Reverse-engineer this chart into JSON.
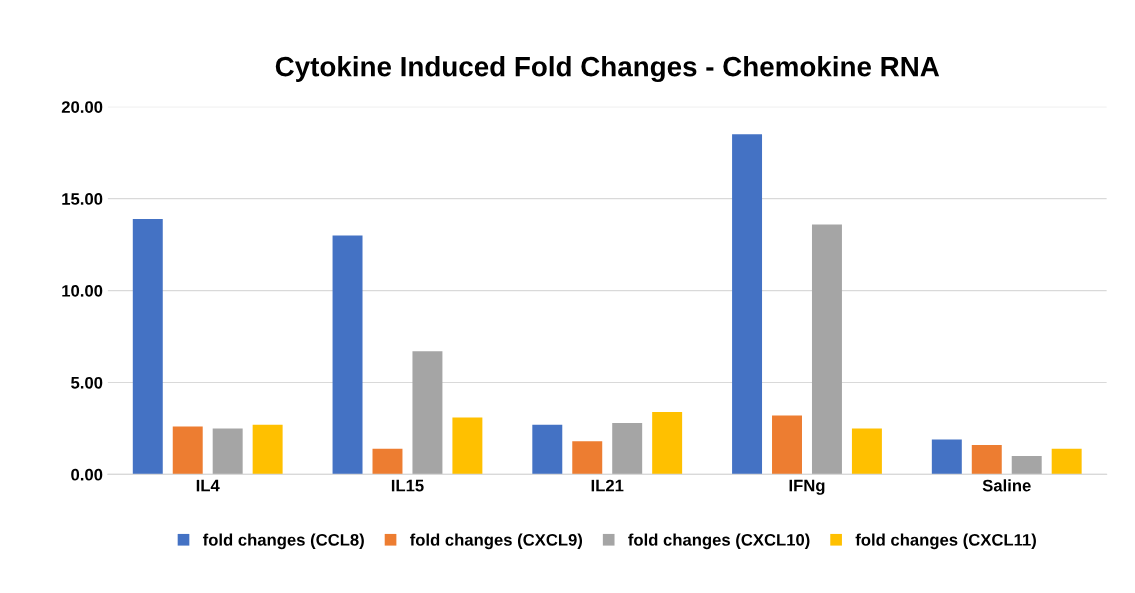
{
  "chart_data": {
    "type": "bar",
    "title": "Cytokine Induced Fold Changes - Chemokine RNA",
    "categories": [
      "IL4",
      "IL15",
      "IL21",
      "IFNg",
      "Saline"
    ],
    "series": [
      {
        "name": "fold changes (CCL8)",
        "color": "#4472c4",
        "values": [
          13.9,
          13.0,
          2.7,
          18.5,
          1.9
        ]
      },
      {
        "name": "fold changes (CXCL9)",
        "color": "#ed7d31",
        "values": [
          2.6,
          1.4,
          1.8,
          3.2,
          1.6
        ]
      },
      {
        "name": "fold changes (CXCL10)",
        "color": "#a5a5a5",
        "values": [
          2.5,
          6.7,
          2.8,
          13.6,
          1.0
        ]
      },
      {
        "name": "fold changes (CXCL11)",
        "color": "#ffc000",
        "values": [
          2.7,
          3.1,
          3.4,
          2.5,
          1.4
        ]
      }
    ],
    "ylim": [
      0,
      20
    ],
    "yticks": [
      {
        "value": 0,
        "label": "0.00"
      },
      {
        "value": 5,
        "label": "5.00"
      },
      {
        "value": 10,
        "label": "10.00"
      },
      {
        "value": 15,
        "label": "15.00"
      },
      {
        "value": 20,
        "label": "20.00"
      }
    ],
    "grid": "y",
    "legend": "bottom"
  }
}
